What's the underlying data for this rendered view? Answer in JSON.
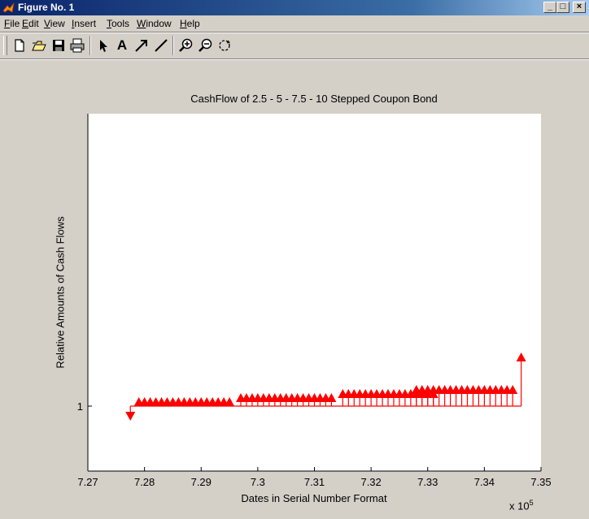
{
  "window": {
    "title": "Figure No. 1",
    "buttons": {
      "minimize": "_",
      "maximize": "□",
      "close": "×"
    }
  },
  "menu": {
    "items": [
      "File",
      "Edit",
      "View",
      "Insert",
      "Tools",
      "Window",
      "Help"
    ]
  },
  "toolbar": {
    "tools": [
      "new-figure-icon",
      "open-file-icon",
      "save-icon",
      "print-icon",
      "select-arrow-icon",
      "insert-text-icon",
      "insert-arrow-icon",
      "insert-line-icon",
      "zoom-in-icon",
      "zoom-out-icon",
      "rotate-3d-icon"
    ],
    "text_tool_label": "A"
  },
  "chart_data": {
    "type": "stem",
    "title": "CashFlow of 2.5 - 5 - 7.5 - 10 Stepped Coupon Bond",
    "xlabel": "Dates in Serial Number Format",
    "ylabel": "Relative Amounts of Cash Flows",
    "x_exponent": "x 10",
    "x_exponent_power": "5",
    "xlim": [
      7.27,
      7.35
    ],
    "ylim": [
      0.8,
      1.9
    ],
    "xticks": [
      "7.27",
      "7.28",
      "7.29",
      "7.3",
      "7.31",
      "7.32",
      "7.33",
      "7.34",
      "7.35"
    ],
    "yticks": [
      "1"
    ],
    "baseline": 1,
    "color": "#ff0000",
    "outflow": {
      "x": 7.2775,
      "y": 0.97
    },
    "series": [
      {
        "x": [
          7.279,
          7.28,
          7.281,
          7.282,
          7.283,
          7.284,
          7.285,
          7.286,
          7.287,
          7.288,
          7.289,
          7.29,
          7.291,
          7.292,
          7.293,
          7.294,
          7.295
        ],
        "y": 1.0125
      },
      {
        "x": [
          7.297,
          7.298,
          7.299,
          7.3,
          7.301,
          7.302,
          7.303,
          7.304,
          7.305,
          7.306,
          7.307,
          7.308,
          7.309,
          7.31,
          7.311,
          7.312,
          7.313
        ],
        "y": 1.025
      },
      {
        "x": [
          7.315,
          7.316,
          7.317,
          7.318,
          7.319,
          7.32,
          7.321,
          7.322,
          7.323,
          7.324,
          7.325,
          7.326,
          7.327,
          7.328,
          7.329,
          7.33,
          7.331
        ],
        "y": 1.0375
      },
      {
        "x": [
          7.328,
          7.329,
          7.33,
          7.331,
          7.332,
          7.333,
          7.334,
          7.335,
          7.336,
          7.337,
          7.338,
          7.339,
          7.34,
          7.341,
          7.342,
          7.343,
          7.344,
          7.345
        ],
        "y": 1.05
      }
    ],
    "principal": {
      "x": 7.3465,
      "y": 1.15
    },
    "grid": false,
    "legend": "none"
  }
}
